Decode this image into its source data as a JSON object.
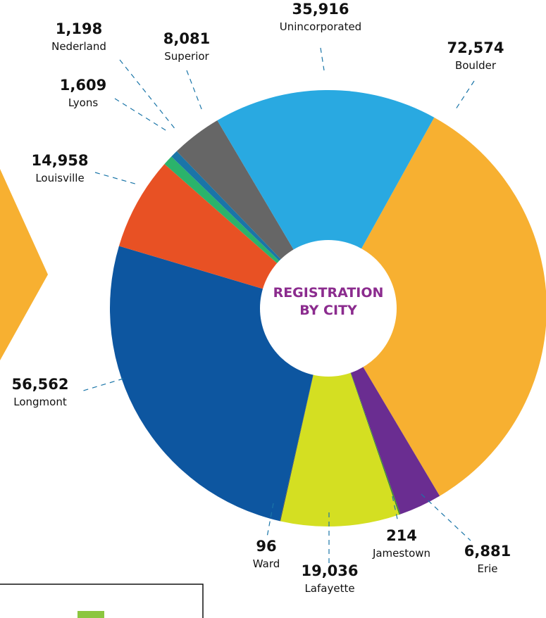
{
  "chart_data": {
    "type": "donut",
    "title": [
      "REGISTRATION",
      "BY CITY"
    ],
    "categories": [
      "Boulder",
      "Erie",
      "Jamestown",
      "Lafayette",
      "Ward",
      "Longmont",
      "Louisville",
      "Lyons",
      "Nederland",
      "Superior",
      "Unincorporated"
    ],
    "values": [
      72574,
      6881,
      214,
      19036,
      96,
      56562,
      14958,
      1609,
      1198,
      8081,
      35916
    ],
    "value_labels": [
      "72,574",
      "6,881",
      "214",
      "19,036",
      "96",
      "56,562",
      "14,958",
      "1,609",
      "1,198",
      "8,081",
      "35,916"
    ],
    "colors": [
      "#f7b031",
      "#6a2d91",
      "#3f8f2f",
      "#d4df22",
      "#4a4a4a",
      "#0d56a0",
      "#e85124",
      "#2bb36b",
      "#1a75a8",
      "#666666",
      "#29a9e1"
    ]
  }
}
